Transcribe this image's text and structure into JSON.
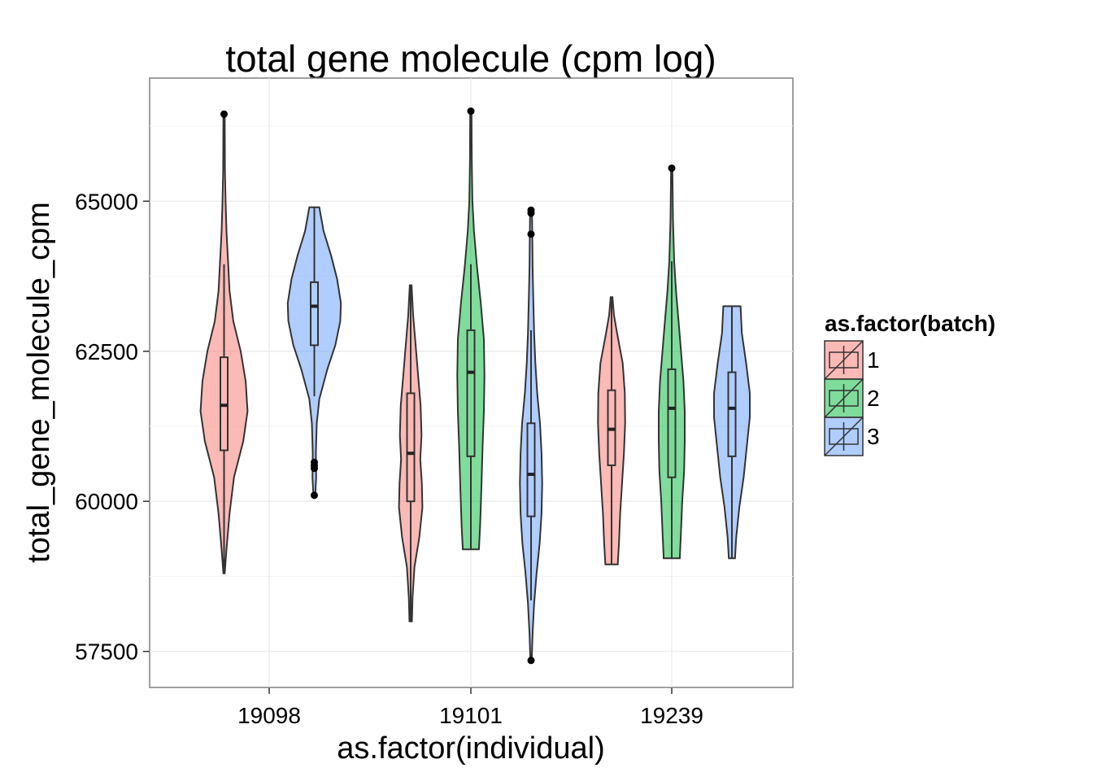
{
  "chart_data": {
    "type": "violin",
    "title": "total gene molecule (cpm log)",
    "xlabel": "as.factor(individual)",
    "ylabel": "total_gene_molecule_cpm",
    "ylim": [
      56900,
      67050
    ],
    "y_ticks": [
      57500,
      60000,
      62500,
      65000
    ],
    "y_tick_labels": [
      "57500",
      "60000",
      "62500",
      "65000"
    ],
    "categories": [
      "19098",
      "19101",
      "19239"
    ],
    "grid": true,
    "legend": {
      "title": "as.factor(batch)",
      "position": "right",
      "entries": [
        "1",
        "2",
        "3"
      ]
    },
    "colors": {
      "1": "#F8766D",
      "2": "#00BA38",
      "3": "#619CFF",
      "panel_bg": "#ffffff",
      "grid": "#ebebeb"
    },
    "groups": [
      {
        "individual": "19098",
        "batch": "1",
        "min": 58800,
        "max": 66450,
        "q1": 60850,
        "median": 61600,
        "q3": 62400,
        "whisker_low": 58800,
        "whisker_high": 63950,
        "outliers": [
          66450
        ],
        "density": [
          [
            58800,
            0.02
          ],
          [
            59200,
            0.08
          ],
          [
            59800,
            0.18
          ],
          [
            60400,
            0.32
          ],
          [
            61000,
            0.62
          ],
          [
            61500,
            0.76
          ],
          [
            62000,
            0.7
          ],
          [
            62500,
            0.54
          ],
          [
            63000,
            0.3
          ],
          [
            63500,
            0.18
          ],
          [
            64000,
            0.13
          ],
          [
            64500,
            0.08
          ],
          [
            65000,
            0.05
          ],
          [
            65500,
            0.03
          ],
          [
            66450,
            0.02
          ]
        ]
      },
      {
        "individual": "19098",
        "batch": "3",
        "min": 60100,
        "max": 64900,
        "q1": 62600,
        "median": 63250,
        "q3": 63650,
        "whisker_low": 61750,
        "whisker_high": 64900,
        "outliers": [
          60100,
          60550,
          60600,
          60650
        ],
        "density": [
          [
            60100,
            0.03
          ],
          [
            60400,
            0.06
          ],
          [
            60800,
            0.05
          ],
          [
            61300,
            0.08
          ],
          [
            61700,
            0.16
          ],
          [
            62200,
            0.42
          ],
          [
            62600,
            0.68
          ],
          [
            63000,
            0.84
          ],
          [
            63300,
            0.86
          ],
          [
            63700,
            0.74
          ],
          [
            64100,
            0.54
          ],
          [
            64500,
            0.3
          ],
          [
            64900,
            0.16
          ]
        ]
      },
      {
        "individual": "19101",
        "batch": "1",
        "min": 58000,
        "max": 63600,
        "q1": 60000,
        "median": 60800,
        "q3": 61800,
        "whisker_low": 58000,
        "whisker_high": 63600,
        "outliers": [],
        "density": [
          [
            58000,
            0.04
          ],
          [
            58400,
            0.06
          ],
          [
            58900,
            0.12
          ],
          [
            59400,
            0.28
          ],
          [
            59900,
            0.38
          ],
          [
            60300,
            0.36
          ],
          [
            60700,
            0.31
          ],
          [
            61100,
            0.35
          ],
          [
            61600,
            0.32
          ],
          [
            62100,
            0.24
          ],
          [
            62600,
            0.16
          ],
          [
            63100,
            0.08
          ],
          [
            63600,
            0.03
          ]
        ]
      },
      {
        "individual": "19101",
        "batch": "2",
        "min": 59200,
        "max": 66500,
        "q1": 60750,
        "median": 62150,
        "q3": 62850,
        "whisker_low": 59200,
        "whisker_high": 63950,
        "outliers": [
          66500
        ],
        "density": [
          [
            59200,
            0.26
          ],
          [
            59600,
            0.3
          ],
          [
            60200,
            0.34
          ],
          [
            60900,
            0.38
          ],
          [
            61500,
            0.42
          ],
          [
            62100,
            0.44
          ],
          [
            62700,
            0.42
          ],
          [
            63300,
            0.32
          ],
          [
            63900,
            0.2
          ],
          [
            64500,
            0.1
          ],
          [
            65000,
            0.05
          ],
          [
            65700,
            0.03
          ],
          [
            66500,
            0.02
          ]
        ]
      },
      {
        "individual": "19101",
        "batch": "3",
        "min": 57350,
        "max": 64850,
        "q1": 59750,
        "median": 60450,
        "q3": 61300,
        "whisker_low": 58350,
        "whisker_high": 62850,
        "outliers": [
          57350,
          64450,
          64800,
          64850
        ],
        "density": [
          [
            57350,
            0.02
          ],
          [
            57800,
            0.05
          ],
          [
            58300,
            0.1
          ],
          [
            58800,
            0.18
          ],
          [
            59300,
            0.28
          ],
          [
            59800,
            0.34
          ],
          [
            60300,
            0.36
          ],
          [
            60800,
            0.34
          ],
          [
            61300,
            0.29
          ],
          [
            61800,
            0.2
          ],
          [
            62300,
            0.14
          ],
          [
            62800,
            0.1
          ],
          [
            63400,
            0.07
          ],
          [
            63900,
            0.05
          ],
          [
            64500,
            0.04
          ],
          [
            64850,
            0.03
          ]
        ]
      },
      {
        "individual": "19239",
        "batch": "1",
        "min": 58950,
        "max": 63400,
        "q1": 60600,
        "median": 61200,
        "q3": 61850,
        "whisker_low": 58950,
        "whisker_high": 63400,
        "outliers": [],
        "density": [
          [
            58950,
            0.2
          ],
          [
            59300,
            0.24
          ],
          [
            59800,
            0.28
          ],
          [
            60300,
            0.34
          ],
          [
            60800,
            0.4
          ],
          [
            61300,
            0.44
          ],
          [
            61800,
            0.43
          ],
          [
            62300,
            0.36
          ],
          [
            62800,
            0.18
          ],
          [
            63100,
            0.08
          ],
          [
            63400,
            0.03
          ]
        ]
      },
      {
        "individual": "19239",
        "batch": "2",
        "min": 59050,
        "max": 65550,
        "q1": 60400,
        "median": 61550,
        "q3": 62200,
        "whisker_low": 59050,
        "whisker_high": 64000,
        "outliers": [
          65550
        ],
        "density": [
          [
            59050,
            0.26
          ],
          [
            59500,
            0.3
          ],
          [
            60000,
            0.34
          ],
          [
            60500,
            0.4
          ],
          [
            61000,
            0.42
          ],
          [
            61500,
            0.42
          ],
          [
            62000,
            0.38
          ],
          [
            62500,
            0.3
          ],
          [
            63000,
            0.22
          ],
          [
            63500,
            0.14
          ],
          [
            64000,
            0.08
          ],
          [
            64700,
            0.04
          ],
          [
            65550,
            0.02
          ]
        ]
      },
      {
        "individual": "19239",
        "batch": "3",
        "min": 59050,
        "max": 63250,
        "q1": 60750,
        "median": 61550,
        "q3": 62150,
        "whisker_low": 59050,
        "whisker_high": 63250,
        "outliers": [],
        "density": [
          [
            59050,
            0.1
          ],
          [
            59400,
            0.14
          ],
          [
            59900,
            0.24
          ],
          [
            60400,
            0.38
          ],
          [
            60900,
            0.48
          ],
          [
            61400,
            0.58
          ],
          [
            61800,
            0.58
          ],
          [
            62300,
            0.46
          ],
          [
            62800,
            0.32
          ],
          [
            63250,
            0.28
          ]
        ]
      }
    ]
  }
}
